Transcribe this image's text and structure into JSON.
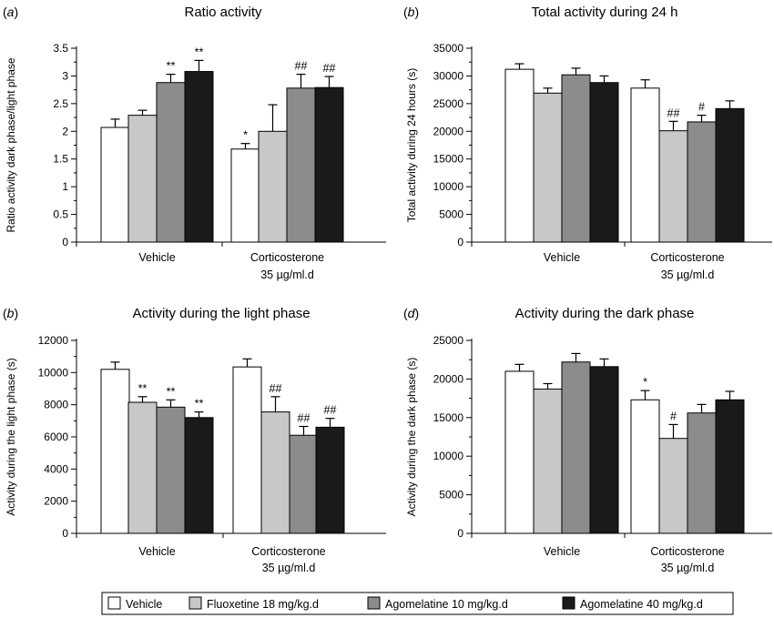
{
  "chart_data": [
    {
      "type": "bar",
      "panel_letter": "a",
      "title": "Ratio activity",
      "xlabel": "",
      "ylabel": "Ratio activity dark phase/light phase",
      "ylim": [
        0,
        3.5
      ],
      "yticks": [
        "0",
        "0.5",
        "1",
        "1.5",
        "2",
        "2.5",
        "3",
        "3.5"
      ],
      "categories": [
        "Vehicle",
        "Corticosterone"
      ],
      "category_sublabels": [
        "",
        "35 µg/ml.d"
      ],
      "series": [
        {
          "name": "Vehicle",
          "values": [
            2.07,
            1.68
          ],
          "errors": [
            0.15,
            0.1
          ],
          "labels": [
            "",
            "*"
          ]
        },
        {
          "name": "Fluoxetine 18 mg/kg.d",
          "values": [
            2.29,
            2.0
          ],
          "errors": [
            0.09,
            0.48
          ],
          "labels": [
            "",
            ""
          ]
        },
        {
          "name": "Agomelatine 10 mg/kg.d",
          "values": [
            2.88,
            2.78
          ],
          "errors": [
            0.15,
            0.25
          ],
          "labels": [
            "**",
            "##"
          ]
        },
        {
          "name": "Agomelatine 40 mg/kg.d",
          "values": [
            3.08,
            2.79
          ],
          "errors": [
            0.2,
            0.2
          ],
          "labels": [
            "**",
            "##"
          ]
        }
      ],
      "colors": [
        "#ffffff",
        "#c8c8c8",
        "#8c8c8c",
        "#1a1a1a"
      ]
    },
    {
      "type": "bar",
      "panel_letter": "b",
      "title": "Total activity during  24 h",
      "xlabel": "",
      "ylabel": "Total activity during 24 hours (s)",
      "ylim": [
        0,
        35000
      ],
      "yticks": [
        "0",
        "5000",
        "10000",
        "15000",
        "20000",
        "25000",
        "30000",
        "35000"
      ],
      "categories": [
        "Vehicle",
        "Corticosterone"
      ],
      "category_sublabels": [
        "",
        "35 µg/ml.d"
      ],
      "series": [
        {
          "name": "Vehicle",
          "values": [
            31200,
            27800
          ],
          "errors": [
            1000,
            1500
          ],
          "labels": [
            "",
            ""
          ]
        },
        {
          "name": "Fluoxetine 18 mg/kg.d",
          "values": [
            26900,
            20100
          ],
          "errors": [
            900,
            1700
          ],
          "labels": [
            "",
            "##"
          ]
        },
        {
          "name": "Agomelatine 10 mg/kg.d",
          "values": [
            30200,
            21700
          ],
          "errors": [
            1200,
            1200
          ],
          "labels": [
            "",
            "#"
          ]
        },
        {
          "name": "Agomelatine 40 mg/kg.d",
          "values": [
            28800,
            24100
          ],
          "errors": [
            1200,
            1400
          ],
          "labels": [
            "",
            ""
          ]
        }
      ],
      "colors": [
        "#ffffff",
        "#c8c8c8",
        "#8c8c8c",
        "#1a1a1a"
      ]
    },
    {
      "type": "bar",
      "panel_letter": "b",
      "title": "Activity during the light phase",
      "xlabel": "",
      "ylabel": "Activity during the light phase (s)",
      "ylim": [
        0,
        12000
      ],
      "yticks": [
        "0",
        "2000",
        "4000",
        "6000",
        "8000",
        "10000",
        "12000"
      ],
      "categories": [
        "Vehicle",
        "Corticosterone"
      ],
      "category_sublabels": [
        "",
        "35 µg/ml.d"
      ],
      "series": [
        {
          "name": "Vehicle",
          "values": [
            10200,
            10350
          ],
          "errors": [
            450,
            500
          ],
          "labels": [
            "",
            ""
          ]
        },
        {
          "name": "Fluoxetine 18 mg/kg.d",
          "values": [
            8150,
            7550
          ],
          "errors": [
            350,
            950
          ],
          "labels": [
            "**",
            "##"
          ]
        },
        {
          "name": "Agomelatine 10 mg/kg.d",
          "values": [
            7850,
            6100
          ],
          "errors": [
            450,
            550
          ],
          "labels": [
            "**",
            "##"
          ]
        },
        {
          "name": "Agomelatine 40 mg/kg.d",
          "values": [
            7200,
            6600
          ],
          "errors": [
            350,
            550
          ],
          "labels": [
            "**",
            "##"
          ]
        }
      ],
      "colors": [
        "#ffffff",
        "#c8c8c8",
        "#8c8c8c",
        "#1a1a1a"
      ]
    },
    {
      "type": "bar",
      "panel_letter": "d",
      "title": "Activity during the dark phase",
      "xlabel": "",
      "ylabel": "Activity during the dark phase (s)",
      "ylim": [
        0,
        25000
      ],
      "yticks": [
        "0",
        "5000",
        "10000",
        "15000",
        "20000",
        "25000"
      ],
      "categories": [
        "Vehicle",
        "Corticosterone"
      ],
      "category_sublabels": [
        "",
        "35 µg/ml.d"
      ],
      "series": [
        {
          "name": "Vehicle",
          "values": [
            21000,
            17300
          ],
          "errors": [
            900,
            1200
          ],
          "labels": [
            "",
            "*"
          ]
        },
        {
          "name": "Fluoxetine 18 mg/kg.d",
          "values": [
            18700,
            12300
          ],
          "errors": [
            700,
            1800
          ],
          "labels": [
            "",
            "#"
          ]
        },
        {
          "name": "Agomelatine 10 mg/kg.d",
          "values": [
            22200,
            15600
          ],
          "errors": [
            1100,
            1100
          ],
          "labels": [
            "",
            ""
          ]
        },
        {
          "name": "Agomelatine 40 mg/kg.d",
          "values": [
            21600,
            17300
          ],
          "errors": [
            1000,
            1100
          ],
          "labels": [
            "",
            ""
          ]
        }
      ],
      "colors": [
        "#ffffff",
        "#c8c8c8",
        "#8c8c8c",
        "#1a1a1a"
      ]
    }
  ],
  "legend": {
    "items": [
      {
        "label": "Vehicle",
        "color": "#ffffff"
      },
      {
        "label": "Fluoxetine 18 mg/kg.d",
        "color": "#c8c8c8"
      },
      {
        "label": "Agomelatine 10 mg/kg.d",
        "color": "#8c8c8c"
      },
      {
        "label": "Agomelatine 40 mg/kg.d",
        "color": "#1a1a1a"
      }
    ]
  }
}
